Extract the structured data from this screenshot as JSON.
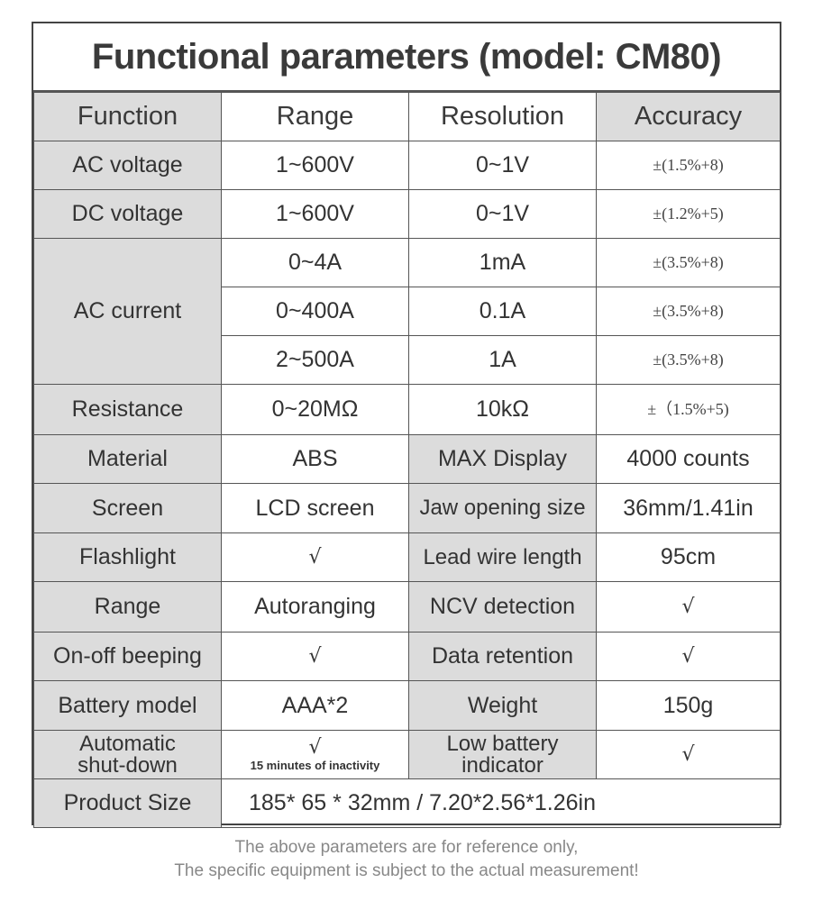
{
  "title": "Functional parameters (model: CM80)",
  "headers": [
    "Function",
    "Range",
    "Resolution",
    "Accuracy"
  ],
  "rows": {
    "ac_voltage": {
      "function": "AC voltage",
      "range": "1~600V",
      "resolution": "0~1V",
      "accuracy": "±(1.5%+8)"
    },
    "dc_voltage": {
      "function": "DC voltage",
      "range": "1~600V",
      "resolution": "0~1V",
      "accuracy": "±(1.2%+5)"
    },
    "ac_current": {
      "function": "AC current",
      "sub": [
        {
          "range": "0~4A",
          "resolution": "1mA",
          "accuracy": "±(3.5%+8)"
        },
        {
          "range": "0~400A",
          "resolution": "0.1A",
          "accuracy": "±(3.5%+8)"
        },
        {
          "range": "2~500A",
          "resolution": "1A",
          "accuracy": "±(3.5%+8)"
        }
      ]
    },
    "resistance": {
      "function": "Resistance",
      "range": "0~20MΩ",
      "resolution": "10kΩ",
      "accuracy": "±（1.5%+5)"
    }
  },
  "specs": [
    {
      "label": "Material",
      "value": "ABS",
      "label2": "MAX Display",
      "value2": "4000 counts"
    },
    {
      "label": "Screen",
      "value": "LCD screen",
      "label2": "Jaw opening size",
      "value2": "36mm/1.41in"
    },
    {
      "label": "Flashlight",
      "value": "√",
      "label2": "Lead wire length",
      "value2": "95cm"
    },
    {
      "label": "Range",
      "value": "Autoranging",
      "label2": "NCV detection",
      "value2": "√"
    },
    {
      "label": "On-off beeping",
      "value": "√",
      "label2": "Data retention",
      "value2": "√"
    },
    {
      "label": "Battery model",
      "value": "AAA*2",
      "label2": "Weight",
      "value2": "150g"
    }
  ],
  "auto_shutdown": {
    "label_line1": "Automatic",
    "label_line2": "shut-down",
    "value": "√",
    "note": "15 minutes of inactivity",
    "label2_line1": "Low battery",
    "label2_line2": "indicator",
    "value2": "√"
  },
  "product_size": {
    "label": "Product Size",
    "value": "185* 65 * 32mm / 7.20*2.56*1.26in"
  },
  "footer": {
    "line1": "The above parameters are for reference only,",
    "line2": "The specific equipment is subject to the actual measurement!"
  }
}
